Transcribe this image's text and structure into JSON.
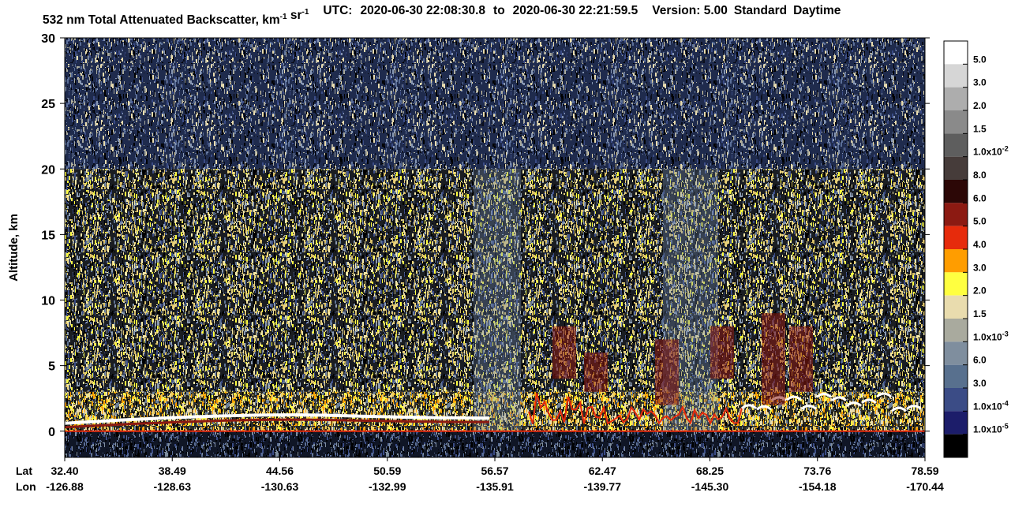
{
  "chart_data": {
    "type": "heatmap",
    "title_segments": [
      [
        "532 nm Total Attenuated Backscatter, km",
        "-1"
      ],
      [
        " sr",
        "-1"
      ]
    ],
    "utc_label": "UTC:",
    "start_time": "2020-06-30 22:08:30.8",
    "to_label": "to",
    "end_time": "2020-06-30 22:21:59.5",
    "version": "Version: 5.00",
    "product": "Standard",
    "daytime": "Daytime",
    "y_label": "Altitude, km",
    "ylim": [
      -2,
      30
    ],
    "yticks": [
      0,
      5,
      10,
      15,
      20,
      25,
      30
    ],
    "x_row_labels": [
      "Lat",
      "Lon"
    ],
    "lat": [
      "32.40",
      "38.49",
      "44.56",
      "50.59",
      "56.57",
      "62.47",
      "68.25",
      "73.76",
      "78.59"
    ],
    "lon": [
      "-126.88",
      "-128.63",
      "-130.63",
      "-132.99",
      "-135.91",
      "-139.77",
      "-145.30",
      "-154.18",
      "-170.44"
    ],
    "colorbar": {
      "colors": [
        "#ffffff",
        "#d6d6d6",
        "#adadad",
        "#8a8a8a",
        "#5e5e5e",
        "#463c3a",
        "#2c0706",
        "#8c1a12",
        "#e62b0c",
        "#ff9d00",
        "#ffff40",
        "#e9dcae",
        "#a9aa9e",
        "#7f8e9e",
        "#58708e",
        "#3b4c86",
        "#1c1d6a",
        "#000000"
      ],
      "labels": [
        "5.0",
        "3.0",
        "2.0",
        "1.5",
        [
          "1.0x10",
          "-2"
        ],
        "8.0",
        "6.0",
        "5.0",
        "4.0",
        "3.0",
        "2.0",
        "1.5",
        [
          "1.0x10",
          "-3"
        ],
        "6.0",
        "3.0",
        [
          "1.0x10",
          "-4"
        ],
        [
          "1.0x10",
          "-5"
        ]
      ]
    }
  }
}
